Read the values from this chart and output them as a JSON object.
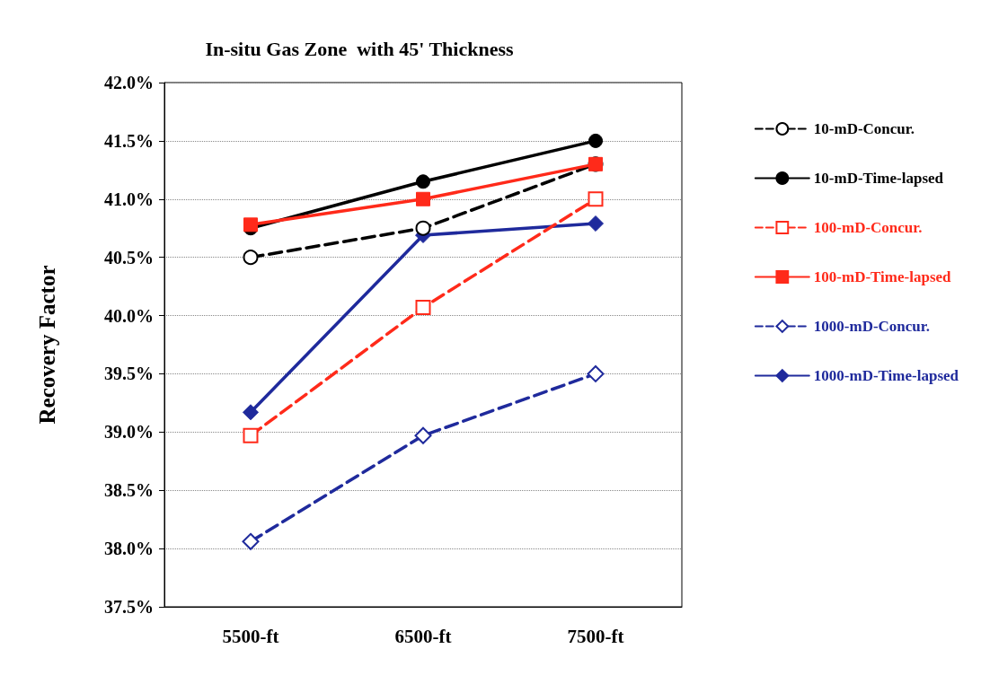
{
  "chart_data": {
    "type": "line",
    "title": "In-situ Gas Zone  with 45' Thickness",
    "ylabel": "Recovery Factor",
    "categories": [
      "5500-ft",
      "6500-ft",
      "7500-ft"
    ],
    "series": [
      {
        "name": "10-mD-Concur.",
        "color": "#000000",
        "values": [
          40.5,
          40.75,
          41.3
        ],
        "marker": "circle",
        "line_style": "dashed"
      },
      {
        "name": "10-mD-Time-lapsed",
        "color": "#000000",
        "values": [
          40.75,
          41.15,
          41.5
        ],
        "marker": "circle",
        "line_style": "solid"
      },
      {
        "name": "100-mD-Concur.",
        "color": "#ff2a1a",
        "values": [
          38.97,
          40.07,
          41.0
        ],
        "marker": "square",
        "line_style": "dashed"
      },
      {
        "name": "100-mD-Time-lapsed",
        "color": "#ff2a1a",
        "values": [
          40.78,
          41.0,
          41.3
        ],
        "marker": "square",
        "line_style": "solid"
      },
      {
        "name": "1000-mD-Concur.",
        "color": "#1f2a9c",
        "values": [
          38.06,
          38.97,
          39.5
        ],
        "marker": "diamond",
        "line_style": "dashed"
      },
      {
        "name": "1000-mD-Time-lapsed",
        "color": "#1f2a9c",
        "values": [
          39.17,
          40.69,
          40.79
        ],
        "marker": "diamond",
        "line_style": "solid"
      }
    ],
    "ylim": [
      37.5,
      42.0
    ],
    "yticks": [
      {
        "value": 37.5,
        "label": "37.5%"
      },
      {
        "value": 38.0,
        "label": "38.0%"
      },
      {
        "value": 38.5,
        "label": "38.5%"
      },
      {
        "value": 39.0,
        "label": "39.0%"
      },
      {
        "value": 39.5,
        "label": "39.5%"
      },
      {
        "value": 40.0,
        "label": "40.0%"
      },
      {
        "value": 40.5,
        "label": "40.5%"
      },
      {
        "value": 41.0,
        "label": "41.0%"
      },
      {
        "value": 41.5,
        "label": "41.5%"
      },
      {
        "value": 42.0,
        "label": "42.0%"
      }
    ],
    "grid": "y",
    "legend": "right"
  }
}
